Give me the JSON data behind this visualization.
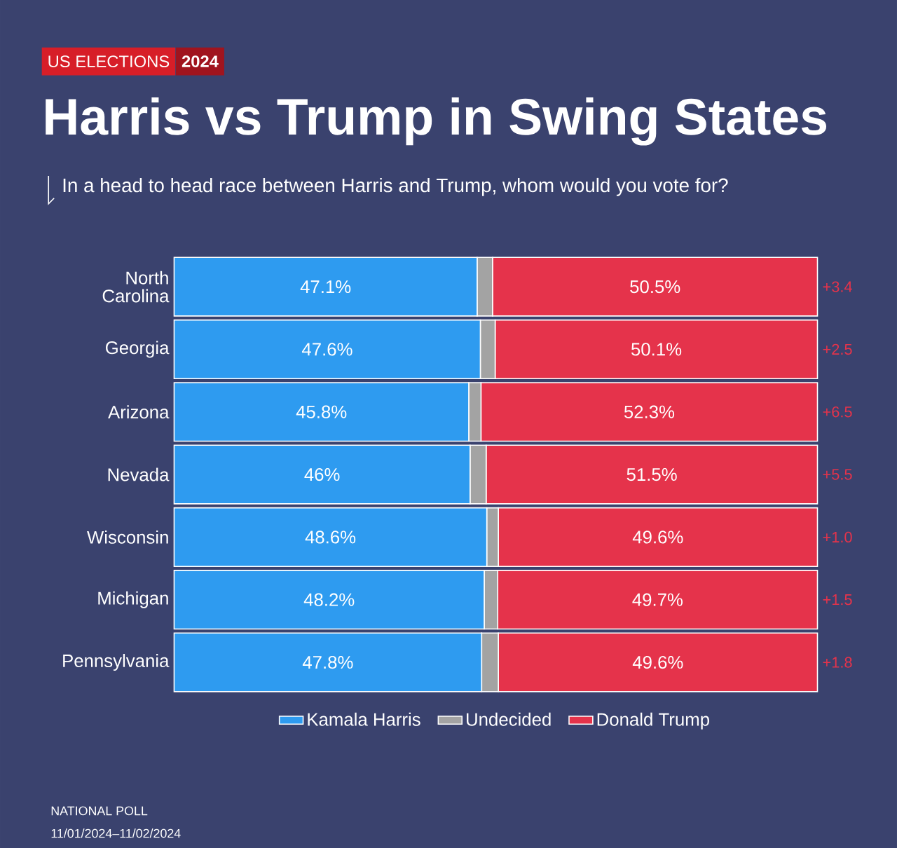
{
  "chart_data": {
    "type": "bar",
    "orientation": "horizontal",
    "stacked": true,
    "title": "Harris vs Trump in Swing States",
    "subtitle": "In a head to head race between Harris and Trump, whom would you vote for?",
    "categories": [
      "North Carolina",
      "Georgia",
      "Arizona",
      "Nevada",
      "Wisconsin",
      "Michigan",
      "Pennsylvania"
    ],
    "series": [
      {
        "name": "Kamala Harris",
        "color": "#2e9bf0",
        "values": [
          47.1,
          47.6,
          45.8,
          46,
          48.6,
          48.2,
          47.8
        ],
        "value_labels": [
          "47.1%",
          "47.6%",
          "45.8%",
          "46%",
          "48.6%",
          "48.2%",
          "47.8%"
        ]
      },
      {
        "name": "Undecided",
        "color": "#a3a3a3",
        "values": [
          2.4,
          2.3,
          1.9,
          2.5,
          1.8,
          2.1,
          2.6
        ]
      },
      {
        "name": "Donald Trump",
        "color": "#e5334b",
        "values": [
          50.5,
          50.1,
          52.3,
          51.5,
          49.6,
          49.7,
          49.6
        ],
        "value_labels": [
          "50.5%",
          "50.1%",
          "52.3%",
          "51.5%",
          "49.6%",
          "49.7%",
          "49.6%"
        ]
      }
    ],
    "xlim": [
      0,
      100
    ],
    "tick_labels": "y",
    "legend": "bottom",
    "annotations": [
      "US ELECTIONS",
      "2024",
      "NATIONAL POLL",
      "11/01/2024–11/02/2024",
      "+3.4",
      "+2.5",
      "+6.5",
      "+5.5",
      "+1.0",
      "+1.5",
      "+1.8"
    ]
  }
}
